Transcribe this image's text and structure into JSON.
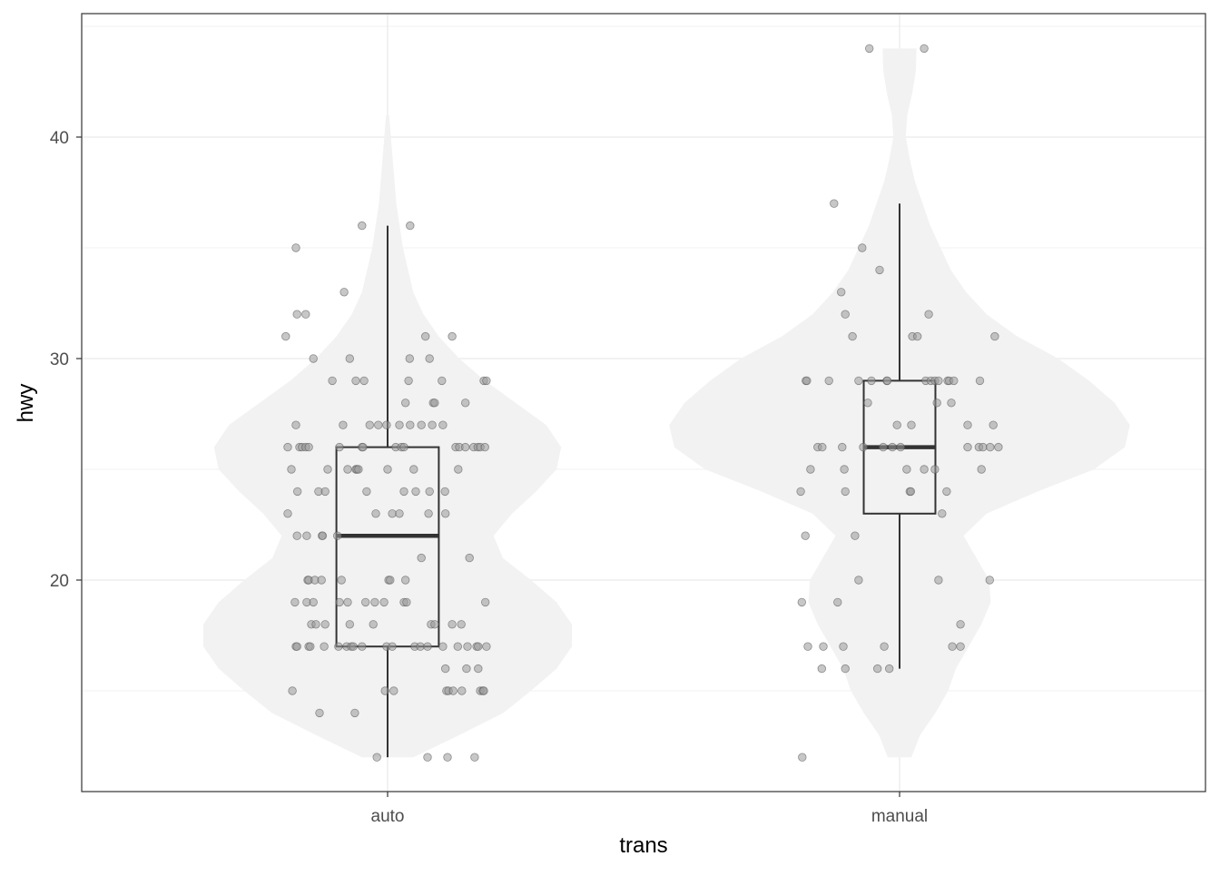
{
  "chart_data": {
    "type": "violin",
    "xlabel": "trans",
    "ylabel": "hwy",
    "categories": [
      "auto",
      "manual"
    ],
    "ylim": [
      10.4,
      45.6
    ],
    "y_ticks": [
      20,
      30,
      40
    ],
    "y_minor": [
      15,
      25,
      35,
      45
    ],
    "grid": true,
    "colors": {
      "violin": "#f2f2f2",
      "box": "#333333",
      "point_fill": "#999999",
      "point_stroke": "#555555",
      "grid": "#ebebeb",
      "border": "#333333"
    },
    "boxplots": [
      {
        "category": "auto",
        "lower_whisker": 12,
        "q1": 17,
        "median": 22,
        "q3": 26,
        "upper_whisker": 36
      },
      {
        "category": "manual",
        "lower_whisker": 16,
        "q1": 23,
        "median": 26,
        "q3": 29,
        "upper_whisker": 37
      }
    ],
    "violins": [
      {
        "category": "auto",
        "profile": [
          [
            12,
            0.05
          ],
          [
            13,
            0.14
          ],
          [
            14,
            0.226
          ],
          [
            15,
            0.28
          ],
          [
            16,
            0.33
          ],
          [
            17,
            0.36
          ],
          [
            18,
            0.36
          ],
          [
            19,
            0.33
          ],
          [
            20,
            0.28
          ],
          [
            21,
            0.225
          ],
          [
            22,
            0.207
          ],
          [
            23,
            0.243
          ],
          [
            24,
            0.29
          ],
          [
            25,
            0.33
          ],
          [
            26,
            0.339
          ],
          [
            27,
            0.31
          ],
          [
            28,
            0.25
          ],
          [
            29,
            0.19
          ],
          [
            30,
            0.14
          ],
          [
            31,
            0.1
          ],
          [
            32,
            0.07
          ],
          [
            33,
            0.05
          ],
          [
            35,
            0.03
          ],
          [
            37,
            0.017
          ],
          [
            39,
            0.01
          ],
          [
            41,
            0.003
          ]
        ]
      },
      {
        "category": "manual",
        "profile": [
          [
            12,
            0.023
          ],
          [
            13,
            0.04
          ],
          [
            14,
            0.07
          ],
          [
            15,
            0.095
          ],
          [
            16,
            0.11
          ],
          [
            17,
            0.135
          ],
          [
            18,
            0.16
          ],
          [
            19,
            0.178
          ],
          [
            20,
            0.175
          ],
          [
            21,
            0.15
          ],
          [
            22,
            0.125
          ],
          [
            23,
            0.17
          ],
          [
            24,
            0.27
          ],
          [
            25,
            0.38
          ],
          [
            26,
            0.44
          ],
          [
            27,
            0.45
          ],
          [
            28,
            0.42
          ],
          [
            29,
            0.37
          ],
          [
            30,
            0.31
          ],
          [
            31,
            0.23
          ],
          [
            32,
            0.17
          ],
          [
            33,
            0.13
          ],
          [
            34,
            0.1
          ],
          [
            35,
            0.08
          ],
          [
            36,
            0.06
          ],
          [
            37,
            0.045
          ],
          [
            38,
            0.03
          ],
          [
            39,
            0.02
          ],
          [
            40,
            0.012
          ],
          [
            41,
            0.015
          ],
          [
            42,
            0.025
          ],
          [
            43,
            0.032
          ],
          [
            44,
            0.033
          ]
        ]
      }
    ],
    "points": [
      {
        "category": "auto",
        "jitter_hwy": [
          [
            -0.05,
            36
          ],
          [
            0.044,
            36
          ],
          [
            -0.179,
            35
          ],
          [
            -0.085,
            33
          ],
          [
            -0.177,
            32
          ],
          [
            -0.16,
            32
          ],
          [
            -0.199,
            31
          ],
          [
            0.074,
            31
          ],
          [
            0.126,
            31
          ],
          [
            -0.145,
            30
          ],
          [
            -0.074,
            30
          ],
          [
            0.043,
            30
          ],
          [
            0.082,
            30
          ],
          [
            -0.108,
            29
          ],
          [
            -0.062,
            29
          ],
          [
            -0.046,
            29
          ],
          [
            0.041,
            29
          ],
          [
            0.106,
            29
          ],
          [
            0.188,
            29
          ],
          [
            0.193,
            29
          ],
          [
            0.035,
            28
          ],
          [
            0.089,
            28
          ],
          [
            0.092,
            28
          ],
          [
            0.152,
            28
          ],
          [
            -0.179,
            27
          ],
          [
            -0.087,
            27
          ],
          [
            -0.035,
            27
          ],
          [
            -0.018,
            27
          ],
          [
            -0.002,
            27
          ],
          [
            0.023,
            27
          ],
          [
            0.044,
            27
          ],
          [
            0.066,
            27
          ],
          [
            0.087,
            27
          ],
          [
            0.108,
            27
          ],
          [
            -0.195,
            26
          ],
          [
            -0.172,
            26
          ],
          [
            -0.167,
            26
          ],
          [
            -0.16,
            26
          ],
          [
            -0.154,
            26
          ],
          [
            -0.094,
            26
          ],
          [
            -0.05,
            26
          ],
          [
            -0.048,
            26
          ],
          [
            0.016,
            26
          ],
          [
            0.027,
            26
          ],
          [
            0.032,
            26
          ],
          [
            0.133,
            26
          ],
          [
            0.14,
            26
          ],
          [
            0.152,
            26
          ],
          [
            0.168,
            26
          ],
          [
            0.176,
            26
          ],
          [
            0.181,
            26
          ],
          [
            0.19,
            26
          ],
          [
            -0.188,
            25
          ],
          [
            -0.117,
            25
          ],
          [
            -0.078,
            25
          ],
          [
            -0.062,
            25
          ],
          [
            -0.06,
            25
          ],
          [
            -0.057,
            25
          ],
          [
            0,
            25
          ],
          [
            0.051,
            25
          ],
          [
            0.138,
            25
          ],
          [
            -0.176,
            24
          ],
          [
            -0.135,
            24
          ],
          [
            -0.122,
            24
          ],
          [
            -0.041,
            24
          ],
          [
            0.032,
            24
          ],
          [
            0.055,
            24
          ],
          [
            0.082,
            24
          ],
          [
            0.112,
            24
          ],
          [
            -0.195,
            23
          ],
          [
            -0.023,
            23
          ],
          [
            0.009,
            23
          ],
          [
            0.023,
            23
          ],
          [
            0.08,
            23
          ],
          [
            0.113,
            23
          ],
          [
            -0.177,
            22
          ],
          [
            -0.158,
            22
          ],
          [
            -0.128,
            22
          ],
          [
            -0.127,
            22
          ],
          [
            -0.098,
            22
          ],
          [
            0.066,
            21
          ],
          [
            0.16,
            21
          ],
          [
            -0.156,
            20
          ],
          [
            -0.154,
            20
          ],
          [
            -0.142,
            20
          ],
          [
            -0.129,
            20
          ],
          [
            -0.09,
            20
          ],
          [
            0.002,
            20
          ],
          [
            0.005,
            20
          ],
          [
            0.035,
            20
          ],
          [
            -0.181,
            19
          ],
          [
            -0.158,
            19
          ],
          [
            -0.145,
            19
          ],
          [
            -0.094,
            19
          ],
          [
            -0.078,
            19
          ],
          [
            -0.043,
            19
          ],
          [
            -0.025,
            19
          ],
          [
            -0.007,
            19
          ],
          [
            0.032,
            19
          ],
          [
            0.037,
            19
          ],
          [
            0.191,
            19
          ],
          [
            -0.149,
            18
          ],
          [
            -0.14,
            18
          ],
          [
            -0.122,
            18
          ],
          [
            -0.074,
            18
          ],
          [
            -0.028,
            18
          ],
          [
            0.085,
            18
          ],
          [
            0.092,
            18
          ],
          [
            0.126,
            18
          ],
          [
            0.144,
            18
          ],
          [
            -0.179,
            17
          ],
          [
            -0.177,
            17
          ],
          [
            -0.154,
            17
          ],
          [
            -0.151,
            17
          ],
          [
            -0.124,
            17
          ],
          [
            -0.096,
            17
          ],
          [
            -0.08,
            17
          ],
          [
            -0.071,
            17
          ],
          [
            -0.067,
            17
          ],
          [
            -0.05,
            17
          ],
          [
            -0.002,
            17
          ],
          [
            0.009,
            17
          ],
          [
            0.053,
            17
          ],
          [
            0.064,
            17
          ],
          [
            0.078,
            17
          ],
          [
            0.108,
            17
          ],
          [
            0.137,
            17
          ],
          [
            0.156,
            17
          ],
          [
            0.174,
            17
          ],
          [
            0.177,
            17
          ],
          [
            0.193,
            17
          ],
          [
            0.113,
            16
          ],
          [
            0.154,
            16
          ],
          [
            0.177,
            16
          ],
          [
            -0.186,
            15
          ],
          [
            -0.005,
            15
          ],
          [
            0.012,
            15
          ],
          [
            0.115,
            15
          ],
          [
            0.119,
            15
          ],
          [
            0.128,
            15
          ],
          [
            0.145,
            15
          ],
          [
            0.181,
            15
          ],
          [
            0.186,
            15
          ],
          [
            0.188,
            15
          ],
          [
            -0.133,
            14
          ],
          [
            -0.064,
            14
          ],
          [
            -0.021,
            12
          ],
          [
            0.078,
            12
          ],
          [
            0.117,
            12
          ],
          [
            0.17,
            12
          ]
        ]
      },
      {
        "category": "manual",
        "jitter_hwy": [
          [
            -0.059,
            44
          ],
          [
            0.048,
            44
          ],
          [
            -0.128,
            37
          ],
          [
            -0.073,
            35
          ],
          [
            -0.039,
            34
          ],
          [
            -0.114,
            33
          ],
          [
            -0.106,
            32
          ],
          [
            0.057,
            32
          ],
          [
            -0.092,
            31
          ],
          [
            0.025,
            31
          ],
          [
            0.035,
            31
          ],
          [
            0.186,
            31
          ],
          [
            -0.183,
            29
          ],
          [
            -0.181,
            29
          ],
          [
            -0.138,
            29
          ],
          [
            -0.08,
            29
          ],
          [
            -0.055,
            29
          ],
          [
            -0.025,
            29
          ],
          [
            -0.024,
            29
          ],
          [
            0.051,
            29
          ],
          [
            0.061,
            29
          ],
          [
            0.069,
            29
          ],
          [
            0.076,
            29
          ],
          [
            0.094,
            29
          ],
          [
            0.097,
            29
          ],
          [
            0.106,
            29
          ],
          [
            0.157,
            29
          ],
          [
            -0.062,
            28
          ],
          [
            0.073,
            28
          ],
          [
            0.101,
            28
          ],
          [
            -0.005,
            27
          ],
          [
            0.023,
            27
          ],
          [
            0.133,
            27
          ],
          [
            0.183,
            27
          ],
          [
            -0.16,
            26
          ],
          [
            -0.151,
            26
          ],
          [
            -0.112,
            26
          ],
          [
            -0.071,
            26
          ],
          [
            -0.032,
            26
          ],
          [
            -0.014,
            26
          ],
          [
            0.002,
            26
          ],
          [
            0.133,
            26
          ],
          [
            0.155,
            26
          ],
          [
            0.163,
            26
          ],
          [
            0.177,
            26
          ],
          [
            0.193,
            26
          ],
          [
            -0.174,
            25
          ],
          [
            -0.108,
            25
          ],
          [
            0.014,
            25
          ],
          [
            0.048,
            25
          ],
          [
            0.069,
            25
          ],
          [
            0.16,
            25
          ],
          [
            -0.193,
            24
          ],
          [
            -0.106,
            24
          ],
          [
            0.02,
            24
          ],
          [
            0.022,
            24
          ],
          [
            0.092,
            24
          ],
          [
            0.083,
            23
          ],
          [
            -0.184,
            22
          ],
          [
            -0.087,
            22
          ],
          [
            -0.08,
            20
          ],
          [
            0.076,
            20
          ],
          [
            0.176,
            20
          ],
          [
            -0.191,
            19
          ],
          [
            -0.121,
            19
          ],
          [
            0.119,
            18
          ],
          [
            -0.179,
            17
          ],
          [
            -0.149,
            17
          ],
          [
            -0.11,
            17
          ],
          [
            -0.03,
            17
          ],
          [
            0.103,
            17
          ],
          [
            0.119,
            17
          ],
          [
            -0.152,
            16
          ],
          [
            -0.106,
            16
          ],
          [
            -0.043,
            16
          ],
          [
            -0.02,
            16
          ],
          [
            -0.19,
            12
          ]
        ]
      }
    ]
  }
}
